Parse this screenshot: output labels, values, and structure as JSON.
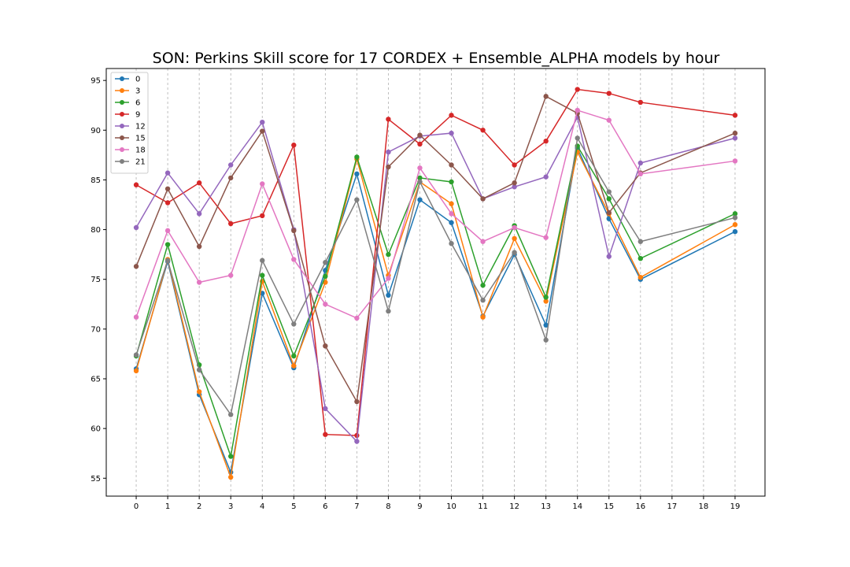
{
  "chart_data": {
    "type": "line",
    "title": "SON: Perkins Skill score for 17 CORDEX + Ensemble_ALPHA models by hour",
    "xlabel": "",
    "ylabel": "",
    "x_ticks": [
      0,
      1,
      2,
      3,
      4,
      5,
      6,
      7,
      8,
      9,
      10,
      11,
      12,
      13,
      14,
      15,
      16,
      17,
      18,
      19
    ],
    "x": [
      0,
      1,
      2,
      3,
      4,
      5,
      6,
      7,
      8,
      9,
      10,
      11,
      12,
      13,
      14,
      15,
      16,
      19
    ],
    "xlim": [
      -0.95,
      19.95
    ],
    "ylim": [
      53.2,
      96.2
    ],
    "y_ticks": [
      55,
      60,
      65,
      70,
      75,
      80,
      85,
      90,
      95
    ],
    "grid": "vertical-dashed",
    "legend_position": "top-left",
    "series": [
      {
        "name": "0",
        "color": "#1f77b4",
        "values": [
          66.0,
          76.8,
          63.4,
          55.6,
          73.6,
          66.1,
          75.9,
          85.6,
          73.4,
          83.0,
          80.7,
          71.3,
          77.5,
          70.4,
          88.2,
          81.1,
          75.0,
          79.8
        ]
      },
      {
        "name": "3",
        "color": "#ff7f0e",
        "values": [
          65.8,
          77.0,
          63.7,
          55.1,
          74.8,
          66.3,
          74.7,
          87.1,
          75.4,
          84.8,
          82.6,
          71.2,
          79.1,
          72.8,
          87.8,
          81.6,
          75.2,
          80.5
        ]
      },
      {
        "name": "6",
        "color": "#2ca02c",
        "values": [
          67.3,
          78.5,
          66.4,
          57.2,
          75.4,
          67.3,
          75.3,
          87.3,
          77.5,
          85.2,
          84.8,
          74.4,
          80.4,
          73.2,
          88.4,
          83.1,
          77.1,
          81.6
        ]
      },
      {
        "name": "9",
        "color": "#d62728",
        "values": [
          84.5,
          82.7,
          84.7,
          80.6,
          81.4,
          88.5,
          59.4,
          59.3,
          91.1,
          88.6,
          91.5,
          90.0,
          86.5,
          88.9,
          94.1,
          93.7,
          92.8,
          91.5
        ]
      },
      {
        "name": "12",
        "color": "#9467bd",
        "values": [
          80.2,
          85.7,
          81.6,
          86.5,
          90.8,
          80.0,
          62.0,
          58.7,
          87.8,
          89.4,
          89.7,
          83.1,
          84.3,
          85.3,
          91.3,
          77.3,
          86.7,
          89.2
        ]
      },
      {
        "name": "15",
        "color": "#8c564b",
        "values": [
          76.3,
          84.1,
          78.3,
          85.2,
          89.9,
          79.9,
          68.3,
          62.7,
          86.3,
          89.5,
          86.5,
          83.1,
          84.7,
          93.4,
          91.7,
          81.7,
          85.7,
          89.7
        ]
      },
      {
        "name": "18",
        "color": "#e377c2",
        "values": [
          71.2,
          79.9,
          74.7,
          75.4,
          84.6,
          77.0,
          72.5,
          71.1,
          75.1,
          86.2,
          81.6,
          78.8,
          80.2,
          79.2,
          92.0,
          91.0,
          85.6,
          86.9
        ]
      },
      {
        "name": "21",
        "color": "#7f7f7f",
        "values": [
          67.4,
          76.9,
          65.9,
          61.4,
          76.9,
          70.5,
          76.7,
          83.0,
          71.8,
          84.8,
          78.6,
          72.9,
          77.7,
          68.9,
          89.2,
          83.8,
          78.8,
          81.2
        ]
      }
    ]
  }
}
